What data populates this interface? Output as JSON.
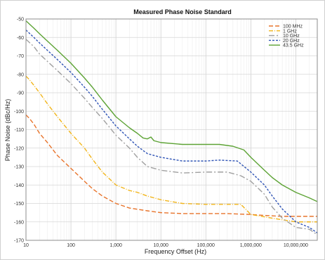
{
  "chart_data": {
    "type": "line",
    "title": "Measured Phase Noise Standard",
    "xlabel": "Frequency Offset (Hz)",
    "ylabel": "Phase Noise (dBc/Hz)",
    "xscale": "log",
    "xlim": [
      10,
      30000000
    ],
    "ylim": [
      -170,
      -50
    ],
    "x_ticks": [
      10,
      100,
      1000,
      10000,
      100000,
      1000000,
      10000000
    ],
    "x_tick_labels": [
      "10",
      "100",
      "1,000",
      "10,000",
      "100,000",
      "1,000,000",
      "10,000,000"
    ],
    "y_ticks": [
      -50,
      -60,
      -70,
      -80,
      -90,
      -100,
      -110,
      -120,
      -130,
      -140,
      -150,
      -160,
      -170
    ],
    "y_tick_labels": [
      "-50",
      "-60",
      "-70",
      "-80",
      "-90",
      "-100",
      "-110",
      "-120",
      "-130",
      "-140",
      "-150",
      "-160",
      "-170"
    ],
    "grid": true,
    "legend_position": "top-right",
    "series": [
      {
        "name": "100 MHz",
        "color": "#e8742c",
        "dash": "6,3",
        "points": [
          [
            10,
            -102
          ],
          [
            12,
            -104
          ],
          [
            15,
            -107
          ],
          [
            20,
            -112
          ],
          [
            30,
            -117
          ],
          [
            50,
            -124
          ],
          [
            100,
            -131
          ],
          [
            200,
            -138
          ],
          [
            300,
            -142
          ],
          [
            500,
            -146
          ],
          [
            1000,
            -150
          ],
          [
            2000,
            -152.5
          ],
          [
            5000,
            -154
          ],
          [
            10000,
            -155
          ],
          [
            30000,
            -155.5
          ],
          [
            100000,
            -155.5
          ],
          [
            300000,
            -155.5
          ],
          [
            1000000,
            -156
          ],
          [
            2000000,
            -156.5
          ],
          [
            5000000,
            -157
          ],
          [
            10000000,
            -157
          ],
          [
            30000000,
            -157
          ]
        ]
      },
      {
        "name": "1 GHz",
        "color": "#f2b51a",
        "dash": "6,2,1,2",
        "points": [
          [
            10,
            -81
          ],
          [
            12,
            -83
          ],
          [
            15,
            -86
          ],
          [
            20,
            -90
          ],
          [
            30,
            -96
          ],
          [
            50,
            -103
          ],
          [
            100,
            -112
          ],
          [
            200,
            -120
          ],
          [
            300,
            -126
          ],
          [
            500,
            -133
          ],
          [
            1000,
            -140
          ],
          [
            2000,
            -143
          ],
          [
            3000,
            -144
          ],
          [
            5000,
            -146
          ],
          [
            10000,
            -148
          ],
          [
            30000,
            -150
          ],
          [
            100000,
            -150.5
          ],
          [
            300000,
            -150.5
          ],
          [
            600000,
            -150.5
          ],
          [
            1000000,
            -156
          ],
          [
            3000000,
            -158
          ],
          [
            10000000,
            -160
          ],
          [
            30000000,
            -160
          ]
        ]
      },
      {
        "name": "10 GHz",
        "color": "#a0a0a0",
        "dash": "8,3,2,3",
        "points": [
          [
            10,
            -61
          ],
          [
            15,
            -65
          ],
          [
            20,
            -69
          ],
          [
            30,
            -73
          ],
          [
            50,
            -78
          ],
          [
            100,
            -85
          ],
          [
            200,
            -93
          ],
          [
            300,
            -98
          ],
          [
            500,
            -104
          ],
          [
            1000,
            -113
          ],
          [
            2000,
            -120
          ],
          [
            3000,
            -125
          ],
          [
            5000,
            -130
          ],
          [
            10000,
            -132
          ],
          [
            30000,
            -133.5
          ],
          [
            100000,
            -133
          ],
          [
            300000,
            -133
          ],
          [
            600000,
            -135
          ],
          [
            1000000,
            -138
          ],
          [
            2000000,
            -145
          ],
          [
            3000000,
            -152
          ],
          [
            5000000,
            -158
          ],
          [
            10000000,
            -163
          ],
          [
            20000000,
            -164
          ],
          [
            30000000,
            -167
          ]
        ]
      },
      {
        "name": "20 GHz",
        "color": "#2f54b5",
        "dash": "3,2",
        "points": [
          [
            10,
            -56
          ],
          [
            15,
            -60
          ],
          [
            20,
            -63
          ],
          [
            30,
            -67
          ],
          [
            50,
            -72
          ],
          [
            100,
            -79
          ],
          [
            200,
            -87
          ],
          [
            300,
            -92
          ],
          [
            500,
            -99
          ],
          [
            1000,
            -108
          ],
          [
            2000,
            -115
          ],
          [
            3000,
            -119
          ],
          [
            5000,
            -123
          ],
          [
            10000,
            -125
          ],
          [
            30000,
            -127
          ],
          [
            100000,
            -127
          ],
          [
            200000,
            -126.5
          ],
          [
            500000,
            -127
          ],
          [
            1000000,
            -133
          ],
          [
            2000000,
            -140
          ],
          [
            3000000,
            -146
          ],
          [
            5000000,
            -153
          ],
          [
            10000000,
            -160
          ],
          [
            20000000,
            -163
          ],
          [
            30000000,
            -166
          ]
        ]
      },
      {
        "name": "43.5 GHz",
        "color": "#5da335",
        "dash": "",
        "points": [
          [
            10,
            -51
          ],
          [
            15,
            -55
          ],
          [
            20,
            -58
          ],
          [
            30,
            -62
          ],
          [
            50,
            -67
          ],
          [
            100,
            -74
          ],
          [
            200,
            -82
          ],
          [
            300,
            -87
          ],
          [
            500,
            -94
          ],
          [
            1000,
            -103
          ],
          [
            2000,
            -109
          ],
          [
            3000,
            -112
          ],
          [
            4000,
            -114.5
          ],
          [
            5000,
            -115
          ],
          [
            6000,
            -114
          ],
          [
            7000,
            -116
          ],
          [
            10000,
            -117
          ],
          [
            30000,
            -118
          ],
          [
            100000,
            -118
          ],
          [
            200000,
            -118
          ],
          [
            400000,
            -119
          ],
          [
            700000,
            -121
          ],
          [
            1000000,
            -125
          ],
          [
            2000000,
            -132
          ],
          [
            3000000,
            -136
          ],
          [
            5000000,
            -140
          ],
          [
            10000000,
            -144
          ],
          [
            20000000,
            -147
          ],
          [
            30000000,
            -149
          ]
        ]
      }
    ]
  }
}
